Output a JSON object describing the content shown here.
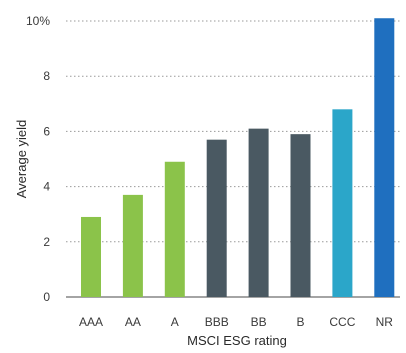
{
  "chart_data": {
    "type": "bar",
    "xlabel": "MSCI ESG rating",
    "ylabel": "Average yield",
    "categories": [
      "AAA",
      "AA",
      "A",
      "BBB",
      "BB",
      "B",
      "CCC",
      "NR"
    ],
    "values": [
      2.9,
      3.7,
      4.9,
      5.7,
      6.1,
      5.9,
      6.8,
      10.1
    ],
    "colors": [
      "#8bc34a",
      "#8bc34a",
      "#8bc34a",
      "#4a5962",
      "#4a5962",
      "#4a5962",
      "#2ba6c9",
      "#1f6fbf"
    ],
    "yticks": [
      0,
      2,
      4,
      6,
      8,
      10
    ],
    "ytick_labels": [
      "0",
      "2",
      "4",
      "6",
      "8",
      "10%"
    ],
    "ylim": [
      0,
      10
    ],
    "grid": true
  }
}
